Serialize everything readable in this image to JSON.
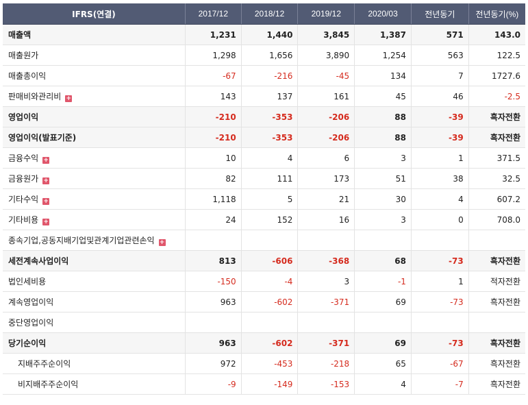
{
  "header": {
    "label": "IFRS(연결)",
    "periods": [
      "2017/12",
      "2018/12",
      "2019/12",
      "2020/03",
      "전년동기",
      "전년동기(%)"
    ]
  },
  "rows": [
    {
      "label": "매출액",
      "values": [
        "1,231",
        "1,440",
        "3,845",
        "1,387",
        "571",
        "143.0"
      ],
      "bold": true,
      "expand": false
    },
    {
      "label": "매출원가",
      "values": [
        "1,298",
        "1,656",
        "3,890",
        "1,254",
        "563",
        "122.5"
      ],
      "bold": false,
      "expand": false
    },
    {
      "label": "매출총이익",
      "values": [
        "-67",
        "-216",
        "-45",
        "134",
        "7",
        "1727.6"
      ],
      "bold": false,
      "expand": false
    },
    {
      "label": "판매비와관리비",
      "values": [
        "143",
        "137",
        "161",
        "45",
        "46",
        "-2.5"
      ],
      "bold": false,
      "expand": true
    },
    {
      "label": "영업이익",
      "values": [
        "-210",
        "-353",
        "-206",
        "88",
        "-39",
        "흑자전환"
      ],
      "bold": true,
      "expand": false
    },
    {
      "label": "영업이익(발표기준)",
      "values": [
        "-210",
        "-353",
        "-206",
        "88",
        "-39",
        "흑자전환"
      ],
      "bold": true,
      "expand": false
    },
    {
      "label": "금융수익",
      "values": [
        "10",
        "4",
        "6",
        "3",
        "1",
        "371.5"
      ],
      "bold": false,
      "expand": true
    },
    {
      "label": "금융원가",
      "values": [
        "82",
        "111",
        "173",
        "51",
        "38",
        "32.5"
      ],
      "bold": false,
      "expand": true
    },
    {
      "label": "기타수익",
      "values": [
        "1,118",
        "5",
        "21",
        "30",
        "4",
        "607.2"
      ],
      "bold": false,
      "expand": true
    },
    {
      "label": "기타비용",
      "values": [
        "24",
        "152",
        "16",
        "3",
        "0",
        "708.0"
      ],
      "bold": false,
      "expand": true
    },
    {
      "label": "종속기업,공동지배기업및관계기업관련손익",
      "values": [
        "",
        "",
        "",
        "",
        "",
        ""
      ],
      "bold": false,
      "expand": true
    },
    {
      "label": "세전계속사업이익",
      "values": [
        "813",
        "-606",
        "-368",
        "68",
        "-73",
        "흑자전환"
      ],
      "bold": true,
      "expand": false
    },
    {
      "label": "법인세비용",
      "values": [
        "-150",
        "-4",
        "3",
        "-1",
        "1",
        "적자전환"
      ],
      "bold": false,
      "expand": false
    },
    {
      "label": "계속영업이익",
      "values": [
        "963",
        "-602",
        "-371",
        "69",
        "-73",
        "흑자전환"
      ],
      "bold": false,
      "expand": false
    },
    {
      "label": "중단영업이익",
      "values": [
        "",
        "",
        "",
        "",
        "",
        ""
      ],
      "bold": false,
      "expand": false
    },
    {
      "label": "당기순이익",
      "values": [
        "963",
        "-602",
        "-371",
        "69",
        "-73",
        "흑자전환"
      ],
      "bold": true,
      "expand": false
    },
    {
      "label": "지배주주순이익",
      "values": [
        "972",
        "-453",
        "-218",
        "65",
        "-67",
        "흑자전환"
      ],
      "bold": false,
      "expand": false,
      "indent": true
    },
    {
      "label": "비지배주주순이익",
      "values": [
        "-9",
        "-149",
        "-153",
        "4",
        "-7",
        "흑자전환"
      ],
      "bold": false,
      "expand": false,
      "indent": true
    }
  ],
  "colors": {
    "header_bg": "#525b74",
    "negative": "#d52b1e",
    "expand_icon": "#e0566b"
  },
  "icons": {
    "expand": "plus-square-icon"
  }
}
